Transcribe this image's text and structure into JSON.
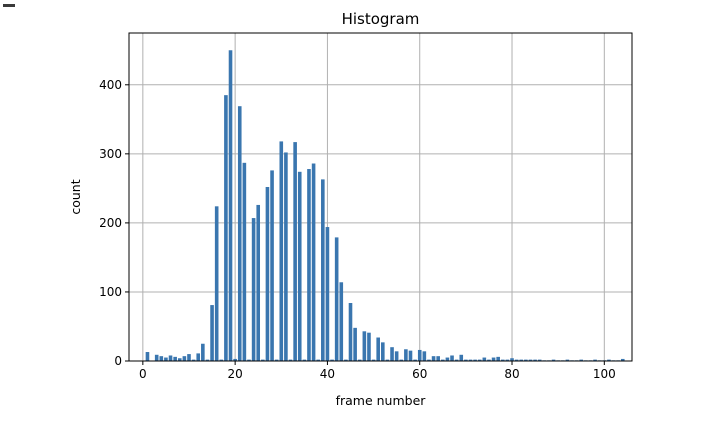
{
  "chart_data": {
    "type": "bar",
    "title": "Histogram",
    "xlabel": "frame number",
    "ylabel": "count",
    "xlim": [
      -3,
      106
    ],
    "ylim": [
      0,
      475
    ],
    "xticks": [
      0,
      20,
      40,
      60,
      80,
      100
    ],
    "yticks": [
      0,
      100,
      200,
      300,
      400
    ],
    "grid": true,
    "bar_color": "#3a76af",
    "bin_width": 1,
    "x": [
      1,
      3,
      4,
      5,
      6,
      7,
      8,
      9,
      10,
      11,
      12,
      13,
      14,
      15,
      16,
      17,
      18,
      19,
      20,
      21,
      22,
      23,
      24,
      25,
      26,
      27,
      28,
      29,
      30,
      31,
      32,
      33,
      34,
      35,
      36,
      37,
      38,
      39,
      40,
      41,
      42,
      43,
      44,
      45,
      46,
      47,
      48,
      49,
      50,
      51,
      52,
      53,
      54,
      55,
      56,
      57,
      58,
      59,
      60,
      61,
      62,
      63,
      64,
      65,
      66,
      67,
      68,
      69,
      70,
      71,
      72,
      73,
      74,
      75,
      76,
      77,
      78,
      79,
      80,
      81,
      82,
      83,
      84,
      85,
      86,
      87,
      88,
      89,
      90,
      91,
      92,
      93,
      94,
      95,
      96,
      97,
      98,
      99,
      100,
      101,
      102,
      103,
      104
    ],
    "values": [
      13,
      9,
      7,
      5,
      8,
      6,
      4,
      7,
      10,
      2,
      11,
      25,
      2,
      81,
      224,
      2,
      385,
      450,
      3,
      369,
      287,
      2,
      207,
      226,
      2,
      252,
      276,
      2,
      318,
      302,
      2,
      317,
      274,
      2,
      278,
      286,
      2,
      263,
      194,
      2,
      179,
      114,
      2,
      84,
      48,
      2,
      43,
      41,
      2,
      34,
      27,
      2,
      20,
      14,
      2,
      17,
      15,
      2,
      16,
      14,
      2,
      7,
      7,
      2,
      5,
      8,
      2,
      9,
      2,
      2,
      2,
      2,
      5,
      2,
      5,
      6,
      2,
      2,
      4,
      2,
      2,
      2,
      2,
      2,
      2,
      1,
      1,
      2,
      1,
      1,
      2,
      1,
      1,
      2,
      1,
      1,
      2,
      1,
      1,
      2,
      1,
      1,
      3
    ]
  }
}
